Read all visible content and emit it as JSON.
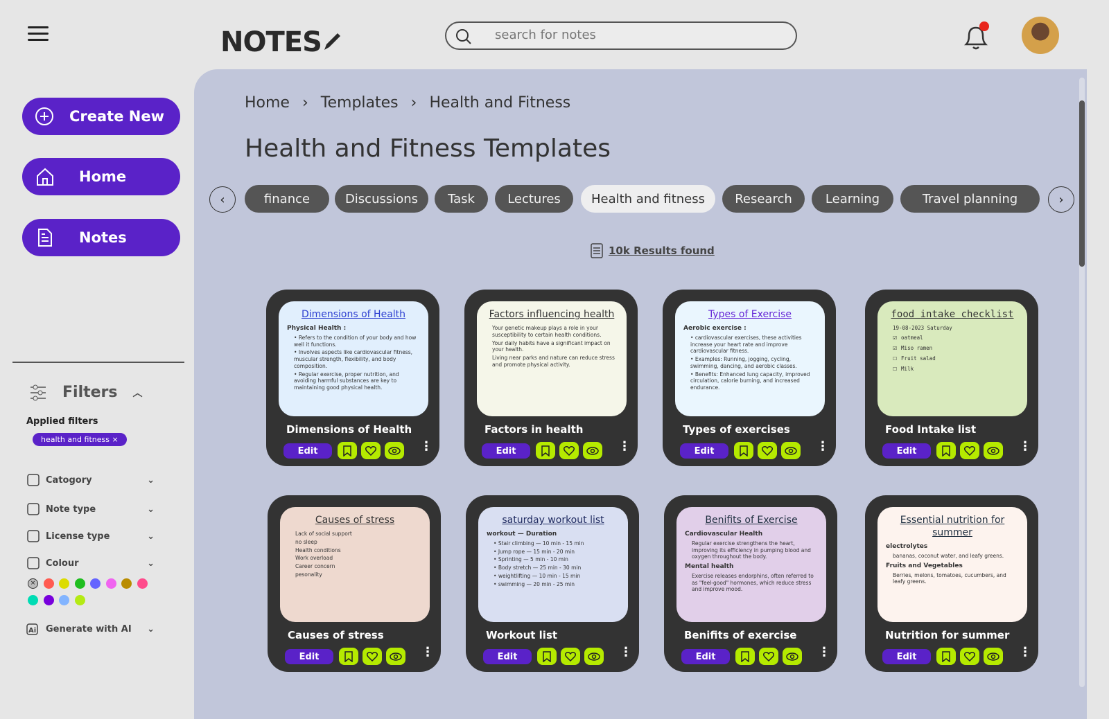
{
  "header": {
    "logo": "NOTES",
    "search_placeholder": "search for notes",
    "notification_dot_color": "#e8251c"
  },
  "sidebar": {
    "buttons": [
      {
        "label": "Create New",
        "icon": "plus-circle-icon"
      },
      {
        "label": "Home",
        "icon": "home-icon"
      },
      {
        "label": "Notes",
        "icon": "document-icon"
      }
    ],
    "filters": {
      "title": "Filters",
      "applied_label": "Applied filters",
      "applied": [
        "health and fitness"
      ],
      "rows": [
        {
          "label": "Catogory",
          "icon": "category-icon"
        },
        {
          "label": "Note type",
          "icon": "clipboard-icon"
        },
        {
          "label": "License type",
          "icon": "crown-icon"
        },
        {
          "label": "Colour",
          "icon": "palette-icon"
        }
      ],
      "colours": [
        "#ff5a50",
        "#dcdc00",
        "#1fbe1f",
        "#6464ff",
        "#f064f0",
        "#b98c00",
        "#ff4b8c",
        "#00dcb4",
        "#7800dc",
        "#82b4ff",
        "#b4ea14"
      ],
      "ai_label": "Generate with AI"
    }
  },
  "breadcrumb": [
    "Home",
    "Templates",
    "Health and Fitness"
  ],
  "page_title": "Health and Fitness Templates",
  "tabs": [
    {
      "label": "finance"
    },
    {
      "label": "Discussions"
    },
    {
      "label": "Task"
    },
    {
      "label": "Lectures"
    },
    {
      "label": "Health and fitness",
      "active": true
    },
    {
      "label": "Research"
    },
    {
      "label": "Learning"
    },
    {
      "label": "Travel planning"
    }
  ],
  "results": "10k Results found",
  "card_actions": {
    "edit": "Edit"
  },
  "cards": [
    {
      "title": "Dimensions of Health",
      "bg": "#e1effd",
      "heading": "Dimensions of Health",
      "heading_color": "#2c3ed0",
      "lines": [
        {
          "t": "Physical Health :",
          "k": "sh"
        },
        {
          "t": "Refers to the condition of your body and how well it functions.",
          "k": "li"
        },
        {
          "t": "Involves aspects like cardiovascular fitness, muscular strength, flexibility, and body composition.",
          "k": "li"
        },
        {
          "t": "Regular exercise, proper nutrition, and avoiding harmful substances are key to maintaining good physical health.",
          "k": "li"
        }
      ]
    },
    {
      "title": "Factors in health",
      "bg": "#f5f6e9",
      "heading": "Factors influencing health",
      "heading_color": "#333333",
      "lines": [
        {
          "t": "Your genetic makeup plays a role in your susceptibility to certain health conditions.",
          "k": "p"
        },
        {
          "t": "Your daily habits have a significant impact on your health.",
          "k": "p"
        },
        {
          "t": "Living near parks and nature can reduce stress and promote physical activity.",
          "k": "p"
        }
      ]
    },
    {
      "title": "Types of exercises",
      "bg": "#eaf6fe",
      "heading": "Types of Exercise",
      "heading_color": "#6526d6",
      "lines": [
        {
          "t": "Aerobic exercise :",
          "k": "sh"
        },
        {
          "t": "cardiovascular exercises, these activities increase your heart rate and improve cardiovascular fitness.",
          "k": "li"
        },
        {
          "t": "Examples: Running, jogging, cycling, swimming, dancing, and aerobic classes.",
          "k": "li"
        },
        {
          "t": "Benefits: Enhanced lung capacity, improved circulation, calorie burning, and increased endurance.",
          "k": "li"
        }
      ]
    },
    {
      "title": "Food Intake list",
      "bg": "#d9eabd",
      "mono": true,
      "heading": "food intake checklist",
      "heading_color": "#333333",
      "lines": [
        {
          "t": "19-08-2023 Saturday",
          "k": "p"
        },
        {
          "t": "oatmeal",
          "k": "ck on"
        },
        {
          "t": "Miso ramen",
          "k": "ck on"
        },
        {
          "t": "Fruit salad",
          "k": "ck"
        },
        {
          "t": "Milk",
          "k": "ck"
        }
      ]
    },
    {
      "title": "Causes of stress",
      "bg": "#eed9cf",
      "heading": "Causes of stress",
      "heading_color": "#333333",
      "lines": [
        {
          "t": "Lack of social support",
          "k": "p"
        },
        {
          "t": "no sleep",
          "k": "p"
        },
        {
          "t": "Health conditions",
          "k": "p"
        },
        {
          "t": "Work overload",
          "k": "p"
        },
        {
          "t": "Career concern",
          "k": "p"
        },
        {
          "t": "pesonality",
          "k": "p"
        }
      ]
    },
    {
      "title": "Workout list",
      "bg": "#d9dff2",
      "heading": "saturday workout list",
      "heading_color": "#1f2a60",
      "lines": [
        {
          "t": "workout — Duration",
          "k": "sh"
        },
        {
          "t": "Stair climbing — 10 min - 15 min",
          "k": "li"
        },
        {
          "t": "Jump rope — 15 min - 20 min",
          "k": "li"
        },
        {
          "t": "Sprinting — 5 min - 10 min",
          "k": "li"
        },
        {
          "t": "Body stretch — 25 min - 30 min",
          "k": "li"
        },
        {
          "t": "weightlifting — 10 min - 15 min",
          "k": "li"
        },
        {
          "t": "swimming — 20 min - 25 min",
          "k": "li"
        }
      ]
    },
    {
      "title": "Benifits of exercise",
      "bg": "#e1cfe9",
      "heading": "Benifits of Exercise",
      "heading_color": "#1f2f40",
      "lines": [
        {
          "t": "Cardiovascular Health",
          "k": "sh"
        },
        {
          "t": "Regular exercise strengthens the heart, improving its efficiency in pumping blood and oxygen throughout the body.",
          "k": "p"
        },
        {
          "t": "Mental health",
          "k": "sh"
        },
        {
          "t": "Exercise releases endorphins, often referred to as \"feel-good\" hormones, which reduce stress and improve mood.",
          "k": "p"
        }
      ]
    },
    {
      "title": "Nutrition for summer",
      "bg": "#fdf3ee",
      "heading": "Essential nutrition for summer",
      "heading_color": "#1f2f40",
      "lines": [
        {
          "t": "electrolytes",
          "k": "sh"
        },
        {
          "t": "bananas, coconut water, and leafy greens.",
          "k": "p"
        },
        {
          "t": "Fruits and Vegetables",
          "k": "sh"
        },
        {
          "t": "Berries, melons, tomatoes, cucumbers, and leafy greens.",
          "k": "p"
        }
      ]
    }
  ]
}
